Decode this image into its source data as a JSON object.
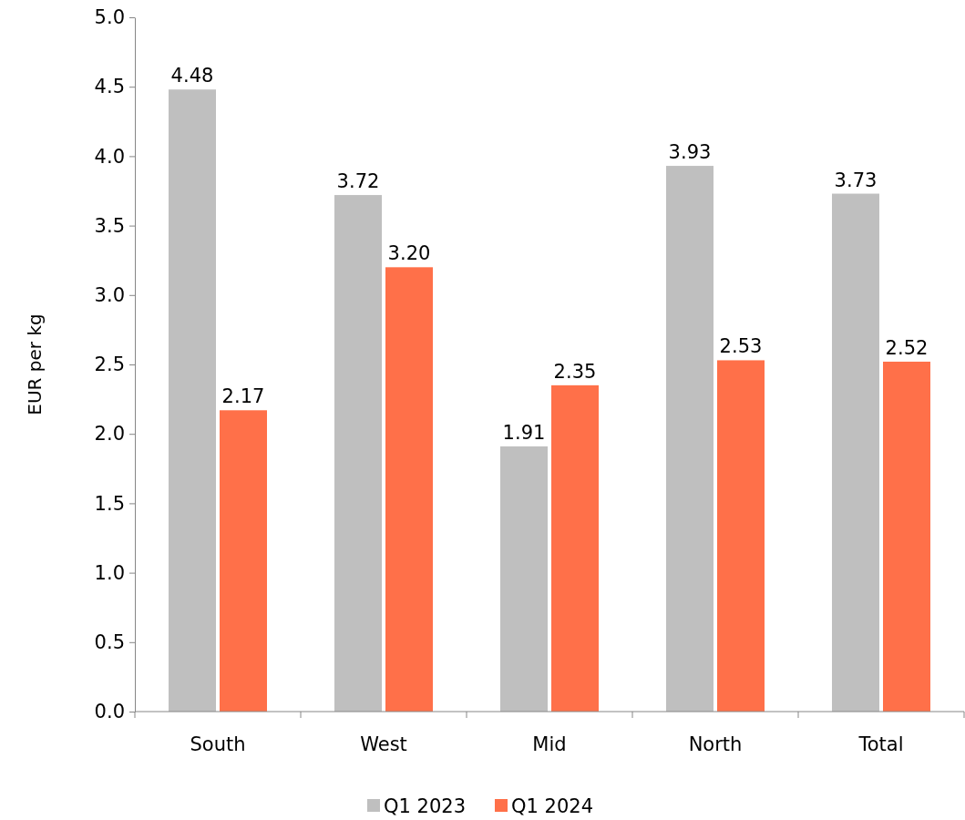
{
  "chart_data": {
    "type": "bar",
    "ylabel": "EUR per kg",
    "categories": [
      "South",
      "West",
      "Mid",
      "North",
      "Total"
    ],
    "series": [
      {
        "name": "Q1 2023",
        "color": "#bfbfbf",
        "values": [
          4.48,
          3.72,
          1.91,
          3.93,
          3.73
        ],
        "value_labels": [
          "4.48",
          "3.72",
          "1.91",
          "3.93",
          "3.73"
        ]
      },
      {
        "name": "Q1 2024",
        "color": "#ff7049",
        "values": [
          2.17,
          3.2,
          2.35,
          2.53,
          2.52
        ],
        "value_labels": [
          "2.17",
          "3.20",
          "2.35",
          "2.53",
          "2.52"
        ]
      }
    ],
    "ylim": [
      0,
      5
    ],
    "yticks": [
      "0.0",
      "0.5",
      "1.0",
      "1.5",
      "2.0",
      "2.5",
      "3.0",
      "3.5",
      "4.0",
      "4.5",
      "5.0"
    ],
    "legend": "bottom",
    "grid": false
  }
}
